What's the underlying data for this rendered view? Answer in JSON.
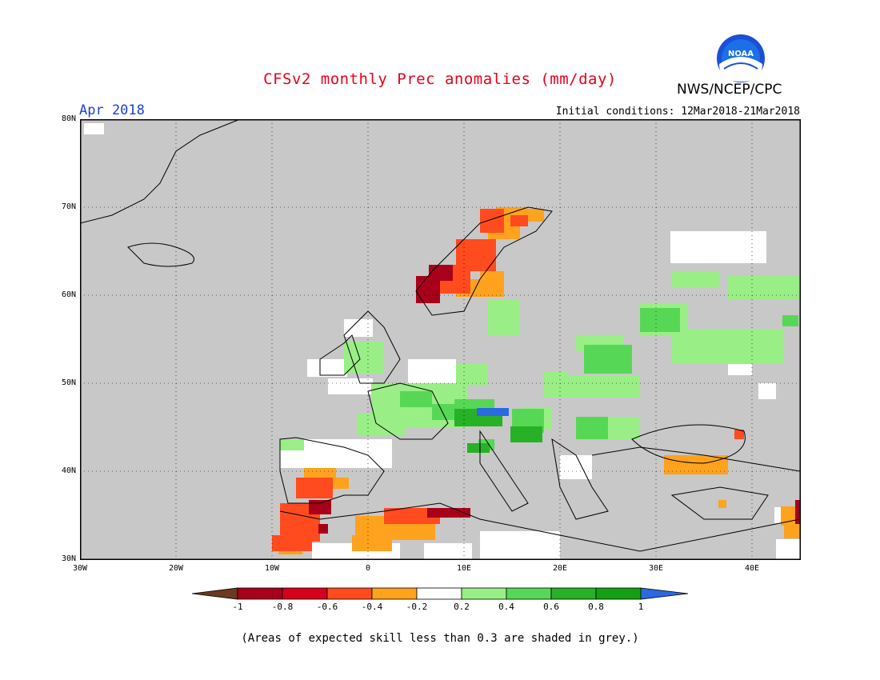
{
  "header": {
    "title": "CFSv2 monthly Prec anomalies (mm/day)",
    "agency": "NWS/NCEP/CPC",
    "logo_text": "NOAA",
    "valid_month": "Apr 2018",
    "initial_conditions": "Initial conditions: 12Mar2018-21Mar2018"
  },
  "map": {
    "region": "Europe",
    "lat_ticks": [
      "80N",
      "70N",
      "60N",
      "50N",
      "40N",
      "30N"
    ],
    "lon_ticks": [
      "30W",
      "20W",
      "10W",
      "0",
      "10E",
      "20E",
      "30E",
      "40E"
    ],
    "lat_range": [
      30,
      80
    ],
    "lon_range": [
      -30,
      45
    ],
    "gridlines": true,
    "background_color": "#c8c8c8",
    "regions": [
      {
        "name": "Norway west coast",
        "category": "< -0.8",
        "color": "#a8001a"
      },
      {
        "name": "Norway coast",
        "category": "-0.6 to -0.4",
        "color": "#ff4b1e"
      },
      {
        "name": "Scandinavia interior",
        "category": "-0.4 to -0.2",
        "color": "#ffa21e"
      },
      {
        "name": "Morocco / Iberia SW",
        "category": "-0.6 to -0.4",
        "color": "#ff4b1e"
      },
      {
        "name": "Algeria / Tunisia",
        "category": "-0.4 to -0.2",
        "color": "#ffa21e"
      },
      {
        "name": "Turkey coast",
        "category": "-0.4 to -0.2",
        "color": "#ffa21e"
      },
      {
        "name": "France / Central Europe",
        "category": "0.2 to 0.4",
        "color": "#9aee86"
      },
      {
        "name": "Alps / Slovenia",
        "category": "0.6 to 0.8",
        "color": "#27b127"
      },
      {
        "name": "Slovenia peak",
        "category": "> 1",
        "color": "#2b6ae0"
      },
      {
        "name": "Russia / Ukraine",
        "category": "0.2 to 0.6",
        "color": "#56d856"
      }
    ]
  },
  "legend": {
    "ticks": [
      "-1",
      "-0.8",
      "-0.6",
      "-0.4",
      "-0.2",
      "0.2",
      "0.4",
      "0.6",
      "0.8",
      "1"
    ],
    "colors": [
      "#6b3a1f",
      "#a8001a",
      "#d5001c",
      "#ff4b1e",
      "#ffa21e",
      "#ffffff",
      "#9aee86",
      "#56d856",
      "#27b127",
      "#14a014",
      "#2b6ae0"
    ]
  },
  "footnote": "(Areas of expected skill less than 0.3 are shaded in grey.)"
}
